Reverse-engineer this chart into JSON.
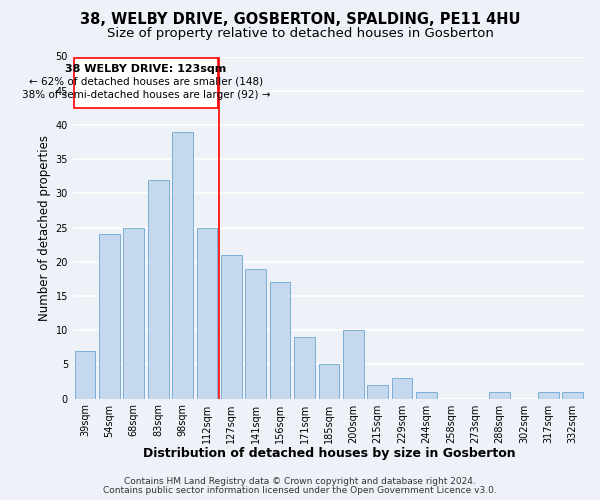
{
  "title": "38, WELBY DRIVE, GOSBERTON, SPALDING, PE11 4HU",
  "subtitle": "Size of property relative to detached houses in Gosberton",
  "xlabel": "Distribution of detached houses by size in Gosberton",
  "ylabel": "Number of detached properties",
  "bar_labels": [
    "39sqm",
    "54sqm",
    "68sqm",
    "83sqm",
    "98sqm",
    "112sqm",
    "127sqm",
    "141sqm",
    "156sqm",
    "171sqm",
    "185sqm",
    "200sqm",
    "215sqm",
    "229sqm",
    "244sqm",
    "258sqm",
    "273sqm",
    "288sqm",
    "302sqm",
    "317sqm",
    "332sqm"
  ],
  "bar_values": [
    7,
    24,
    25,
    32,
    39,
    25,
    21,
    19,
    17,
    9,
    5,
    10,
    2,
    3,
    1,
    0,
    0,
    1,
    0,
    1,
    1
  ],
  "bar_color": "#c5d8ed",
  "bar_edge_color": "#7bafd4",
  "vline_x": 5.5,
  "vline_color": "red",
  "ylim": [
    0,
    50
  ],
  "yticks": [
    0,
    5,
    10,
    15,
    20,
    25,
    30,
    35,
    40,
    45,
    50
  ],
  "annotation_title": "38 WELBY DRIVE: 123sqm",
  "annotation_line1": "← 62% of detached houses are smaller (148)",
  "annotation_line2": "38% of semi-detached houses are larger (92) →",
  "annotation_box_color": "white",
  "annotation_box_edge": "red",
  "footer_line1": "Contains HM Land Registry data © Crown copyright and database right 2024.",
  "footer_line2": "Contains public sector information licensed under the Open Government Licence v3.0.",
  "background_color": "#eef2f8",
  "grid_color": "white",
  "title_fontsize": 10.5,
  "subtitle_fontsize": 9.5,
  "xlabel_fontsize": 9,
  "ylabel_fontsize": 8.5,
  "tick_fontsize": 7,
  "annotation_title_fontsize": 8,
  "annotation_text_fontsize": 7.5,
  "footer_fontsize": 6.5
}
